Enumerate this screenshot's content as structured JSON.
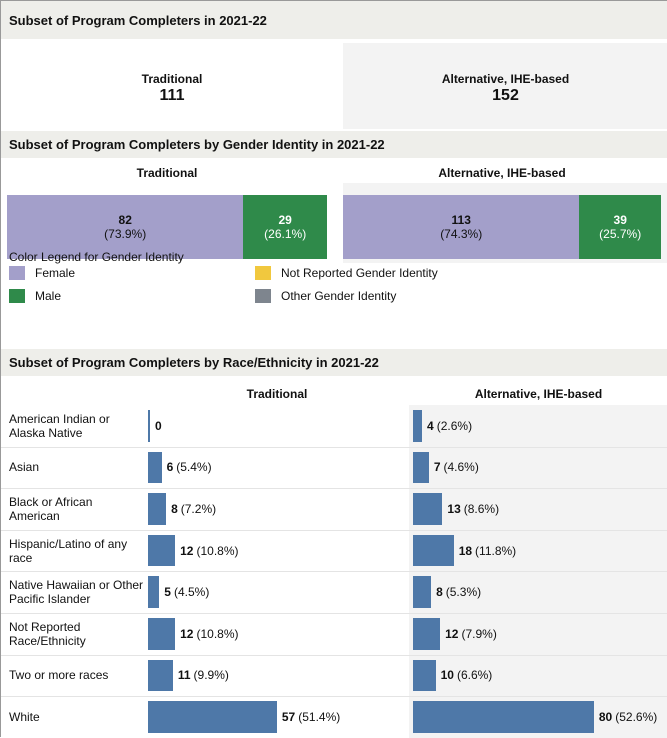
{
  "summary": {
    "title": "Subset of Program Completers in 2021-22",
    "items": [
      {
        "label": "Traditional",
        "value": 111
      },
      {
        "label": "Alternative, IHE-based",
        "value": 152
      }
    ]
  },
  "chart_data": [
    {
      "type": "stacked_bar",
      "title": "Subset of Program Completers by Gender Identity in 2021-22",
      "categories": [
        "Traditional",
        "Alternative, IHE-based"
      ],
      "series": [
        {
          "name": "Female",
          "color": "#a39fca",
          "values": [
            82,
            113
          ],
          "percent_labels": [
            "(73.9%)",
            "(74.3%)"
          ]
        },
        {
          "name": "Male",
          "color": "#2f8a4a",
          "values": [
            29,
            39
          ],
          "percent_labels": [
            "(26.1%)",
            "(25.7%)"
          ]
        },
        {
          "name": "Not Reported Gender Identity",
          "color": "#f1c83e",
          "values": [
            null,
            null
          ],
          "percent_labels": [
            null,
            null
          ]
        },
        {
          "name": "Other Gender Identity",
          "color": "#7e858e",
          "values": [
            null,
            null
          ],
          "percent_labels": [
            null,
            null
          ]
        }
      ],
      "legend_title": "Color Legend for Gender Identity"
    },
    {
      "type": "bar",
      "orientation": "horizontal",
      "title": "Subset of Program Completers by Race/Ethnicity in 2021-22",
      "categories": [
        "American Indian or Alaska Native",
        "Asian",
        "Black or African American",
        "Hispanic/Latino of any race",
        "Native Hawaiian or Other Pacific Islander",
        "Not Reported Race/Ethnicity",
        "Two or more races",
        "White"
      ],
      "series": [
        {
          "name": "Traditional",
          "color": "#4e78a8",
          "values": [
            0,
            6,
            8,
            12,
            5,
            12,
            11,
            57
          ],
          "percent_labels": [
            null,
            "(5.4%)",
            "(7.2%)",
            "(10.8%)",
            "(4.5%)",
            "(10.8%)",
            "(9.9%)",
            "(51.4%)"
          ]
        },
        {
          "name": "Alternative, IHE-based",
          "color": "#4e78a8",
          "values": [
            4,
            7,
            13,
            18,
            8,
            12,
            10,
            80
          ],
          "percent_labels": [
            "(2.6%)",
            "(4.6%)",
            "(8.6%)",
            "(11.8%)",
            "(5.3%)",
            "(7.9%)",
            "(6.6%)",
            "(52.6%)"
          ]
        }
      ],
      "xlim": [
        0,
        115
      ]
    }
  ]
}
